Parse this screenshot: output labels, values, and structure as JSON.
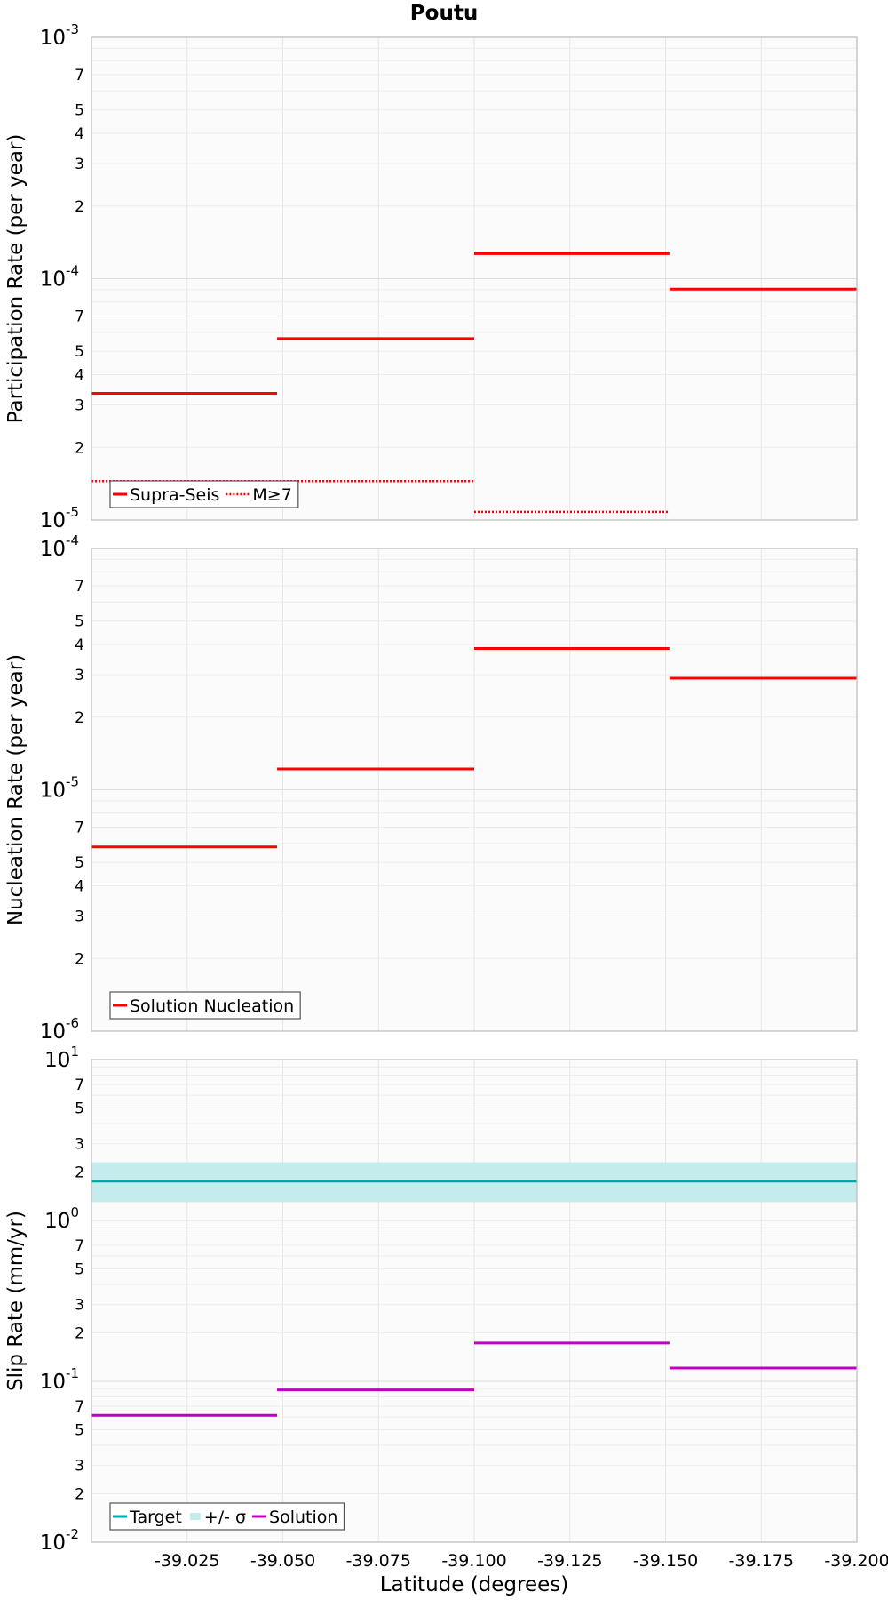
{
  "chart_data": {
    "type": "line",
    "title": "Poutu",
    "xlabel": "Latitude (degrees)",
    "xlim": [
      -39.0,
      -39.2
    ],
    "x_ticks": [
      -39.025,
      -39.05,
      -39.075,
      -39.1,
      -39.125,
      -39.15,
      -39.175,
      -39.2
    ],
    "x_tick_labels": [
      "-39.025",
      "-39.050",
      "-39.075",
      "-39.100",
      "-39.125",
      "-39.150",
      "-39.175",
      "-39.200"
    ],
    "panels": [
      {
        "id": "participation",
        "ylabel": "Participation Rate (per year)",
        "yscale": "log",
        "ylim": [
          1e-05,
          0.001
        ],
        "decade_labels": [
          {
            "base": "10",
            "exp": "-5"
          },
          {
            "base": "10",
            "exp": "-4"
          },
          {
            "base": "10",
            "exp": "-3"
          }
        ],
        "minor_tick_labels": [
          "2",
          "3",
          "4",
          "5",
          "7"
        ],
        "grid": true,
        "legend": "bottom-left",
        "series": [
          {
            "name": "Supra-Seis",
            "style": "solid",
            "color": "#ff0000",
            "segments": [
              {
                "x": [
                  -39.0,
                  -39.0485
                ],
                "y": 3.35e-05
              },
              {
                "x": [
                  -39.0485,
                  -39.1
                ],
                "y": 5.65e-05
              },
              {
                "x": [
                  -39.1,
                  -39.151
                ],
                "y": 0.000127
              },
              {
                "x": [
                  -39.151,
                  -39.2
                ],
                "y": 9.05e-05
              }
            ]
          },
          {
            "name": "M≥7",
            "style": "dotted",
            "color": "#ff0000",
            "segments": [
              {
                "x": [
                  -39.0,
                  -39.1
                ],
                "y": 1.45e-05
              },
              {
                "x": [
                  -39.1,
                  -39.151
                ],
                "y": 1.08e-05
              }
            ]
          }
        ]
      },
      {
        "id": "nucleation",
        "ylabel": "Nucleation Rate (per year)",
        "yscale": "log",
        "ylim": [
          1e-06,
          0.0001
        ],
        "decade_labels": [
          {
            "base": "10",
            "exp": "-6"
          },
          {
            "base": "10",
            "exp": "-5"
          },
          {
            "base": "10",
            "exp": "-4"
          }
        ],
        "minor_tick_labels": [
          "2",
          "3",
          "4",
          "5",
          "7"
        ],
        "grid": true,
        "legend": "bottom-left",
        "series": [
          {
            "name": "Solution Nucleation",
            "style": "solid",
            "color": "#ff0000",
            "segments": [
              {
                "x": [
                  -39.0,
                  -39.0485
                ],
                "y": 5.8e-06
              },
              {
                "x": [
                  -39.0485,
                  -39.1
                ],
                "y": 1.22e-05
              },
              {
                "x": [
                  -39.1,
                  -39.151
                ],
                "y": 3.85e-05
              },
              {
                "x": [
                  -39.151,
                  -39.2
                ],
                "y": 2.9e-05
              }
            ]
          }
        ]
      },
      {
        "id": "slip",
        "ylabel": "Slip Rate (mm/yr)",
        "yscale": "log",
        "ylim": [
          0.01,
          10
        ],
        "decade_labels": [
          {
            "base": "10",
            "exp": "-2"
          },
          {
            "base": "10",
            "exp": "-1"
          },
          {
            "base": "10",
            "exp": "0"
          },
          {
            "base": "10",
            "exp": "1"
          }
        ],
        "minor_tick_labels": [
          "2",
          "3",
          "5",
          "7"
        ],
        "grid": true,
        "legend": "bottom-left",
        "target": {
          "name": "Target",
          "value": 1.75,
          "color": "#00a8a8"
        },
        "band": {
          "name": "+/- σ",
          "low": 1.3,
          "high": 2.3,
          "color": "#c4ecec"
        },
        "series": [
          {
            "name": "Solution",
            "style": "solid",
            "color": "#c000c0",
            "segments": [
              {
                "x": [
                  -39.0,
                  -39.0485
                ],
                "y": 0.0615
              },
              {
                "x": [
                  -39.0485,
                  -39.1
                ],
                "y": 0.0885
              },
              {
                "x": [
                  -39.1,
                  -39.151
                ],
                "y": 0.173
              },
              {
                "x": [
                  -39.151,
                  -39.2
                ],
                "y": 0.121
              }
            ]
          }
        ]
      }
    ]
  }
}
